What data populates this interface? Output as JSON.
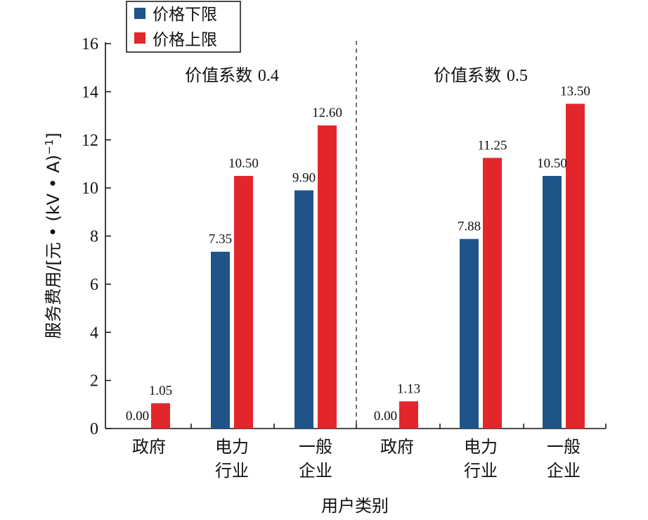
{
  "chart_data": {
    "type": "bar",
    "ylabel_main": "服务费用/[元 • (kV • A)",
    "ylabel_sup": "−1",
    "ylabel_tail": "]",
    "xlabel": "用户类别",
    "ylim": [
      0,
      16
    ],
    "yticks": [
      "0",
      "2",
      "4",
      "6",
      "8",
      "10",
      "12",
      "14",
      "16"
    ],
    "legend": {
      "position": "top-left",
      "entries": [
        {
          "label": "价格下限",
          "color": "#1f5489"
        },
        {
          "label": "价格上限",
          "color": "#e3262c"
        }
      ]
    },
    "groups": [
      {
        "title": "价值系数",
        "title_value": "0.4",
        "categories": [
          [
            "政府"
          ],
          [
            "电力",
            "行业"
          ],
          [
            "一般",
            "企业"
          ]
        ],
        "series": [
          {
            "name": "价格下限",
            "values": [
              0.0,
              7.35,
              9.9
            ],
            "labels": [
              "0.00",
              "7.35",
              "9.90"
            ]
          },
          {
            "name": "价格上限",
            "values": [
              1.05,
              10.5,
              12.6
            ],
            "labels": [
              "1.05",
              "10.50",
              "12.60"
            ]
          }
        ]
      },
      {
        "title": "价值系数",
        "title_value": "0.5",
        "categories": [
          [
            "政府"
          ],
          [
            "电力",
            "行业"
          ],
          [
            "一般",
            "企业"
          ]
        ],
        "series": [
          {
            "name": "价格下限",
            "values": [
              0.0,
              7.88,
              10.5
            ],
            "labels": [
              "0.00",
              "7.88",
              "10.50"
            ]
          },
          {
            "name": "价格上限",
            "values": [
              1.13,
              11.25,
              13.5
            ],
            "labels": [
              "1.13",
              "11.25",
              "13.50"
            ]
          }
        ]
      }
    ],
    "colors": {
      "lower": "#1f5489",
      "upper": "#e3262c",
      "axis": "#111111"
    }
  }
}
